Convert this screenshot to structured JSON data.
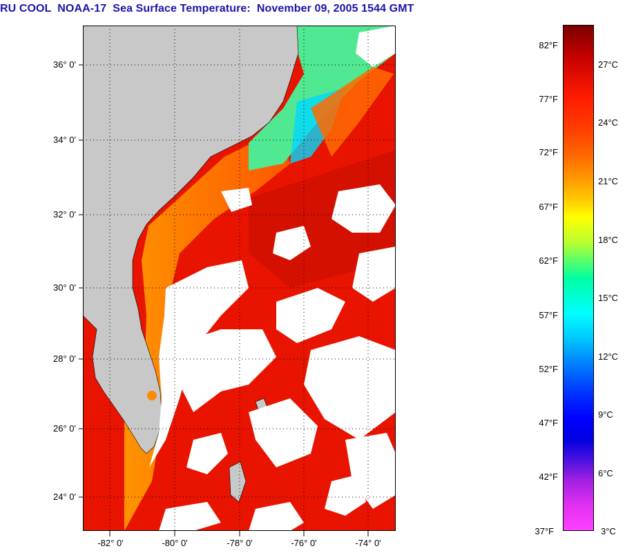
{
  "title": "RU COOL  NOAA-17  Sea Surface Temperature:  November 09, 2005 1544 GMT",
  "map": {
    "lat_labels": [
      "36° 0'",
      "34° 0'",
      "32° 0'",
      "30° 0'",
      "28° 0'",
      "26° 0'",
      "24° 0'"
    ],
    "lon_labels": [
      "-82° 0'",
      "-80° 0'",
      "-78° 0'",
      "-76° 0'",
      "-74° 0'"
    ],
    "colors": {
      "land": "#c8c8c8",
      "cloud": "#ffffff",
      "ocean_warm": "#e81400",
      "ocean_mid": "#ff6a00",
      "shelf": "#ffa000",
      "cool_water": "#40e8a0",
      "title": "#1a14a8"
    }
  },
  "colorbar": {
    "fahrenheit": [
      "82°F",
      "77°F",
      "72°F",
      "67°F",
      "62°F",
      "57°F",
      "52°F",
      "47°F",
      "42°F",
      "37°F"
    ],
    "celsius": [
      "27°C",
      "24°C",
      "21°C",
      "18°C",
      "15°C",
      "12°C",
      "9°C",
      "6°C",
      "3°C"
    ]
  }
}
